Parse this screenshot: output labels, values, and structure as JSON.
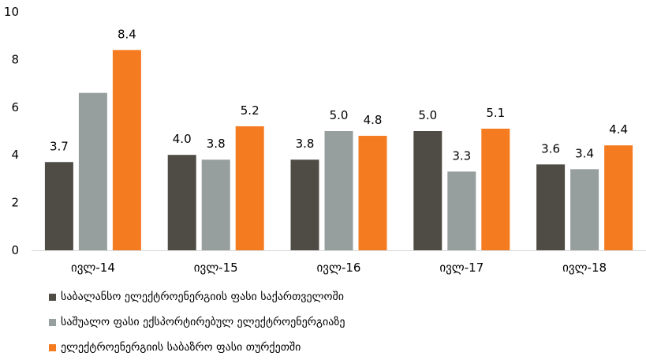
{
  "chart_data": {
    "type": "bar",
    "categories": [
      "ივლ-14",
      "ივლ-15",
      "ივლ-16",
      "ივლ-17",
      "ივლ-18"
    ],
    "series": [
      {
        "name": "საბალანსო ელექტროენერგიის ფასი საქართველოში",
        "color": "#4f4c45",
        "values": [
          3.7,
          4.0,
          3.8,
          5.0,
          3.6
        ],
        "labels": [
          "3.7",
          "4.0",
          "3.8",
          "5.0",
          "3.6"
        ]
      },
      {
        "name": "საშუალო ფასი ექსპორტირებულ ელექტროენერგიაზე",
        "color": "#969e9e",
        "values": [
          6.6,
          3.8,
          5.0,
          3.3,
          3.4
        ],
        "labels": [
          "",
          "3.8",
          "5.0",
          "3.3",
          "3.4"
        ]
      },
      {
        "name": "ელექტროენერგიის საბაზრო ფასი თურქეთში",
        "color": "#f57b20",
        "values": [
          8.4,
          5.2,
          4.8,
          5.1,
          4.4
        ],
        "labels": [
          "8.4",
          "5.2",
          "4.8",
          "5.1",
          "4.4"
        ]
      }
    ],
    "yticks": [
      "0",
      "2",
      "4",
      "6",
      "8",
      "10"
    ],
    "ylim": [
      0,
      10
    ],
    "grid": false,
    "legend_position": "bottom-left"
  }
}
